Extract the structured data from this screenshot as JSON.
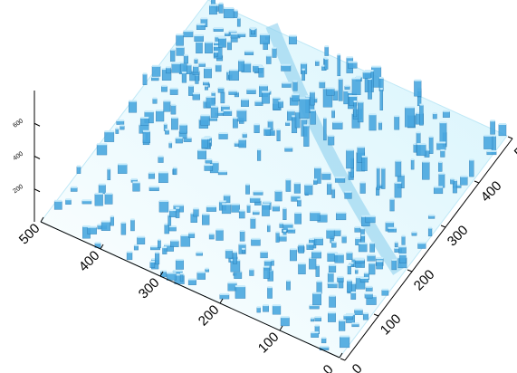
{
  "chart_data": {
    "type": "surface",
    "color": "#4aa8e0",
    "xlim": [
      0,
      500
    ],
    "xticks": [
      0,
      100,
      200,
      300,
      400,
      500
    ],
    "ylim": [
      0,
      500
    ],
    "yticks": [
      0,
      100,
      200,
      300,
      400,
      500
    ],
    "zlim": [
      0,
      800
    ],
    "zticks": [
      200,
      400,
      600
    ]
  }
}
